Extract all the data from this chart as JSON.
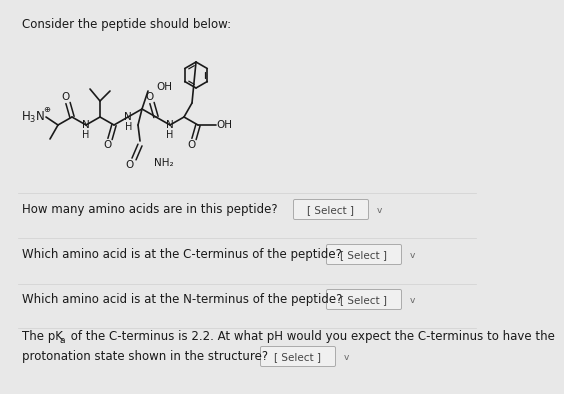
{
  "bg_color": "#e8e8e8",
  "white": "#ffffff",
  "black": "#1a1a1a",
  "gray_line": "#d0d0d0",
  "box_bg": "#f8f8f8",
  "box_border": "#999999",
  "select_color": "#444444",
  "arrow_color": "#888888",
  "title": "Consider the peptide should below:",
  "q1": "How many amino acids are in this peptide?",
  "q2": "Which amino acid is at the C-terminus of the peptide?",
  "q3": "Which amino acid is at the N-terminus of the peptide?",
  "q4a": "The pK",
  "q4b": " of the C-terminus is 2.2. At what pH would you expect the C-terminus to have the",
  "q4c": "protonation state shown in the structure?",
  "select": "[ Select ]"
}
